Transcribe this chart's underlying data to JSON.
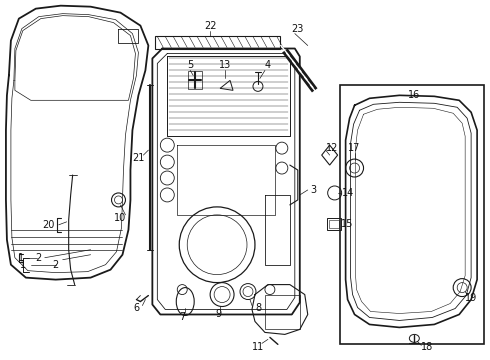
{
  "background_color": "#ffffff",
  "line_color": "#1a1a1a",
  "label_color": "#111111",
  "figsize": [
    4.9,
    3.6
  ],
  "dpi": 100,
  "font_size": 7.0
}
